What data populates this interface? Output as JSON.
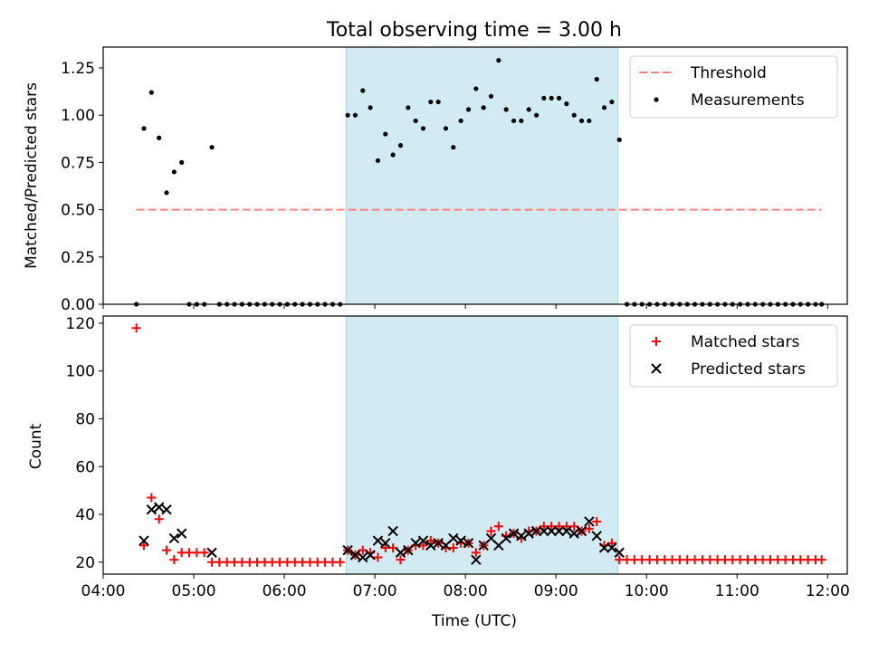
{
  "chart_data": [
    {
      "type": "scatter",
      "title": "Total observing time = 3.00 h",
      "xlabel": "",
      "ylabel": "Matched/Predicted stars",
      "xlim": [
        "04:00",
        "12:13"
      ],
      "ylim": [
        0,
        1.36
      ],
      "yticks": [
        0.0,
        0.25,
        0.5,
        0.75,
        1.0,
        1.25
      ],
      "ytick_labels": [
        "0.00",
        "0.25",
        "0.50",
        "0.75",
        "1.00",
        "1.25"
      ],
      "xticks": [
        "04:00",
        "05:00",
        "06:00",
        "07:00",
        "08:00",
        "09:00",
        "10:00",
        "11:00",
        "12:00"
      ],
      "xtick_labels_shown": false,
      "observing_window": {
        "start": "06:41",
        "end": "09:41",
        "color": "#add8e6"
      },
      "legend": {
        "position": "upper right",
        "entries": [
          "Threshold",
          "Measurements"
        ]
      },
      "series": [
        {
          "name": "Threshold",
          "kind": "line",
          "style": "dashed",
          "color": "#ff7f7f",
          "x": [
            "04:22",
            "11:56"
          ],
          "y": [
            0.5,
            0.5
          ]
        },
        {
          "name": "Measurements",
          "kind": "scatter",
          "color": "#000000",
          "x": [
            "04:22",
            "04:27",
            "04:32",
            "04:37",
            "04:42",
            "04:47",
            "04:52",
            "04:57",
            "05:02",
            "05:07",
            "05:12",
            "05:17",
            "05:22",
            "05:27",
            "05:32",
            "05:37",
            "05:42",
            "05:47",
            "05:52",
            "05:57",
            "06:02",
            "06:07",
            "06:12",
            "06:17",
            "06:22",
            "06:27",
            "06:32",
            "06:37",
            "06:42",
            "06:47",
            "06:52",
            "06:57",
            "07:02",
            "07:07",
            "07:12",
            "07:17",
            "07:22",
            "07:27",
            "07:32",
            "07:37",
            "07:42",
            "07:47",
            "07:52",
            "07:57",
            "08:02",
            "08:07",
            "08:12",
            "08:17",
            "08:22",
            "08:27",
            "08:32",
            "08:37",
            "08:42",
            "08:47",
            "08:52",
            "08:57",
            "09:02",
            "09:07",
            "09:12",
            "09:17",
            "09:22",
            "09:27",
            "09:32",
            "09:37",
            "09:42",
            "09:47",
            "09:52",
            "09:57",
            "10:02",
            "10:07",
            "10:12",
            "10:17",
            "10:22",
            "10:27",
            "10:32",
            "10:37",
            "10:42",
            "10:47",
            "10:52",
            "10:57",
            "11:02",
            "11:07",
            "11:12",
            "11:17",
            "11:22",
            "11:27",
            "11:32",
            "11:37",
            "11:42",
            "11:47",
            "11:52",
            "11:56"
          ],
          "y": [
            0.0,
            0.93,
            1.12,
            0.88,
            0.59,
            0.7,
            0.75,
            0.0,
            0.0,
            0.0,
            0.83,
            0.0,
            0.0,
            0.0,
            0.0,
            0.0,
            0.0,
            0.0,
            0.0,
            0.0,
            0.0,
            0.0,
            0.0,
            0.0,
            0.0,
            0.0,
            0.0,
            0.0,
            1.0,
            1.0,
            1.13,
            1.04,
            0.76,
            0.9,
            0.79,
            0.84,
            1.04,
            0.97,
            0.93,
            1.07,
            1.07,
            0.93,
            0.83,
            0.97,
            1.03,
            1.14,
            1.04,
            1.1,
            1.29,
            1.03,
            0.97,
            0.97,
            1.03,
            1.0,
            1.09,
            1.09,
            1.09,
            1.06,
            1.0,
            0.97,
            0.97,
            1.19,
            1.04,
            1.07,
            0.87,
            0.0,
            0.0,
            0.0,
            0.0,
            0.0,
            0.0,
            0.0,
            0.0,
            0.0,
            0.0,
            0.0,
            0.0,
            0.0,
            0.0,
            0.0,
            0.0,
            0.0,
            0.0,
            0.0,
            0.0,
            0.0,
            0.0,
            0.0,
            0.0,
            0.0,
            0.0,
            0.0
          ]
        }
      ]
    },
    {
      "type": "scatter",
      "title": "",
      "xlabel": "Time (UTC)",
      "ylabel": "Count",
      "xlim": [
        "04:00",
        "12:13"
      ],
      "ylim": [
        15,
        123
      ],
      "yticks": [
        20,
        40,
        60,
        80,
        100,
        120
      ],
      "ytick_labels": [
        "20",
        "40",
        "60",
        "80",
        "100",
        "120"
      ],
      "xticks": [
        "04:00",
        "05:00",
        "06:00",
        "07:00",
        "08:00",
        "09:00",
        "10:00",
        "11:00",
        "12:00"
      ],
      "xtick_labels": [
        "04:00",
        "05:00",
        "06:00",
        "07:00",
        "08:00",
        "09:00",
        "10:00",
        "11:00",
        "12:00"
      ],
      "observing_window": {
        "start": "06:41",
        "end": "09:41",
        "color": "#add8e6"
      },
      "legend": {
        "position": "upper right",
        "entries": [
          "Matched stars",
          "Predicted stars"
        ]
      },
      "series": [
        {
          "name": "Matched stars",
          "marker": "plus",
          "color": "#ff0000",
          "x": [
            "04:22",
            "04:27",
            "04:32",
            "04:37",
            "04:42",
            "04:47",
            "04:52",
            "04:57",
            "05:02",
            "05:07",
            "05:12",
            "05:17",
            "05:22",
            "05:27",
            "05:32",
            "05:37",
            "05:42",
            "05:47",
            "05:52",
            "05:57",
            "06:02",
            "06:07",
            "06:12",
            "06:17",
            "06:22",
            "06:27",
            "06:32",
            "06:37",
            "06:42",
            "06:47",
            "06:52",
            "06:57",
            "07:02",
            "07:07",
            "07:12",
            "07:17",
            "07:22",
            "07:27",
            "07:32",
            "07:37",
            "07:42",
            "07:47",
            "07:52",
            "07:57",
            "08:02",
            "08:07",
            "08:12",
            "08:17",
            "08:22",
            "08:27",
            "08:32",
            "08:37",
            "08:42",
            "08:47",
            "08:52",
            "08:57",
            "09:02",
            "09:07",
            "09:12",
            "09:17",
            "09:22",
            "09:27",
            "09:32",
            "09:37",
            "09:42",
            "09:47",
            "09:52",
            "09:57",
            "10:02",
            "10:07",
            "10:12",
            "10:17",
            "10:22",
            "10:27",
            "10:32",
            "10:37",
            "10:42",
            "10:47",
            "10:52",
            "10:57",
            "11:02",
            "11:07",
            "11:12",
            "11:17",
            "11:22",
            "11:27",
            "11:32",
            "11:37",
            "11:42",
            "11:47",
            "11:52",
            "11:56"
          ],
          "y": [
            118,
            27,
            47,
            38,
            25,
            21,
            24,
            24,
            24,
            24,
            20,
            20,
            20,
            20,
            20,
            20,
            20,
            20,
            20,
            20,
            20,
            20,
            20,
            20,
            20,
            20,
            20,
            20,
            25,
            23,
            25,
            24,
            22,
            26,
            26,
            21,
            25,
            27,
            27,
            29,
            28,
            26,
            26,
            28,
            28,
            24,
            27,
            33,
            35,
            31,
            32,
            30,
            33,
            33,
            35,
            35,
            35,
            35,
            35,
            33,
            34,
            37,
            27,
            28,
            21,
            21,
            21,
            21,
            21,
            21,
            21,
            21,
            21,
            21,
            21,
            21,
            21,
            21,
            21,
            21,
            21,
            21,
            21,
            21,
            21,
            21,
            21,
            21,
            21,
            21,
            21,
            21
          ]
        },
        {
          "name": "Predicted stars",
          "marker": "x",
          "color": "#000000",
          "x": [
            "04:27",
            "04:32",
            "04:37",
            "04:42",
            "04:47",
            "04:52",
            "05:12",
            "06:42",
            "06:47",
            "06:52",
            "06:57",
            "07:02",
            "07:07",
            "07:12",
            "07:17",
            "07:22",
            "07:27",
            "07:32",
            "07:37",
            "07:42",
            "07:47",
            "07:52",
            "07:57",
            "08:02",
            "08:07",
            "08:12",
            "08:17",
            "08:22",
            "08:27",
            "08:32",
            "08:37",
            "08:42",
            "08:47",
            "08:52",
            "08:57",
            "09:02",
            "09:07",
            "09:12",
            "09:17",
            "09:22",
            "09:27",
            "09:32",
            "09:37",
            "09:42"
          ],
          "y": [
            29,
            42,
            43,
            42,
            30,
            32,
            24,
            25,
            23,
            22,
            23,
            29,
            28,
            33,
            24,
            25,
            28,
            29,
            27,
            28,
            27,
            30,
            29,
            28,
            21,
            27,
            30,
            27,
            30,
            32,
            31,
            32,
            33,
            33,
            33,
            33,
            33,
            32,
            33,
            37,
            31,
            26,
            26,
            24
          ]
        }
      ]
    }
  ]
}
